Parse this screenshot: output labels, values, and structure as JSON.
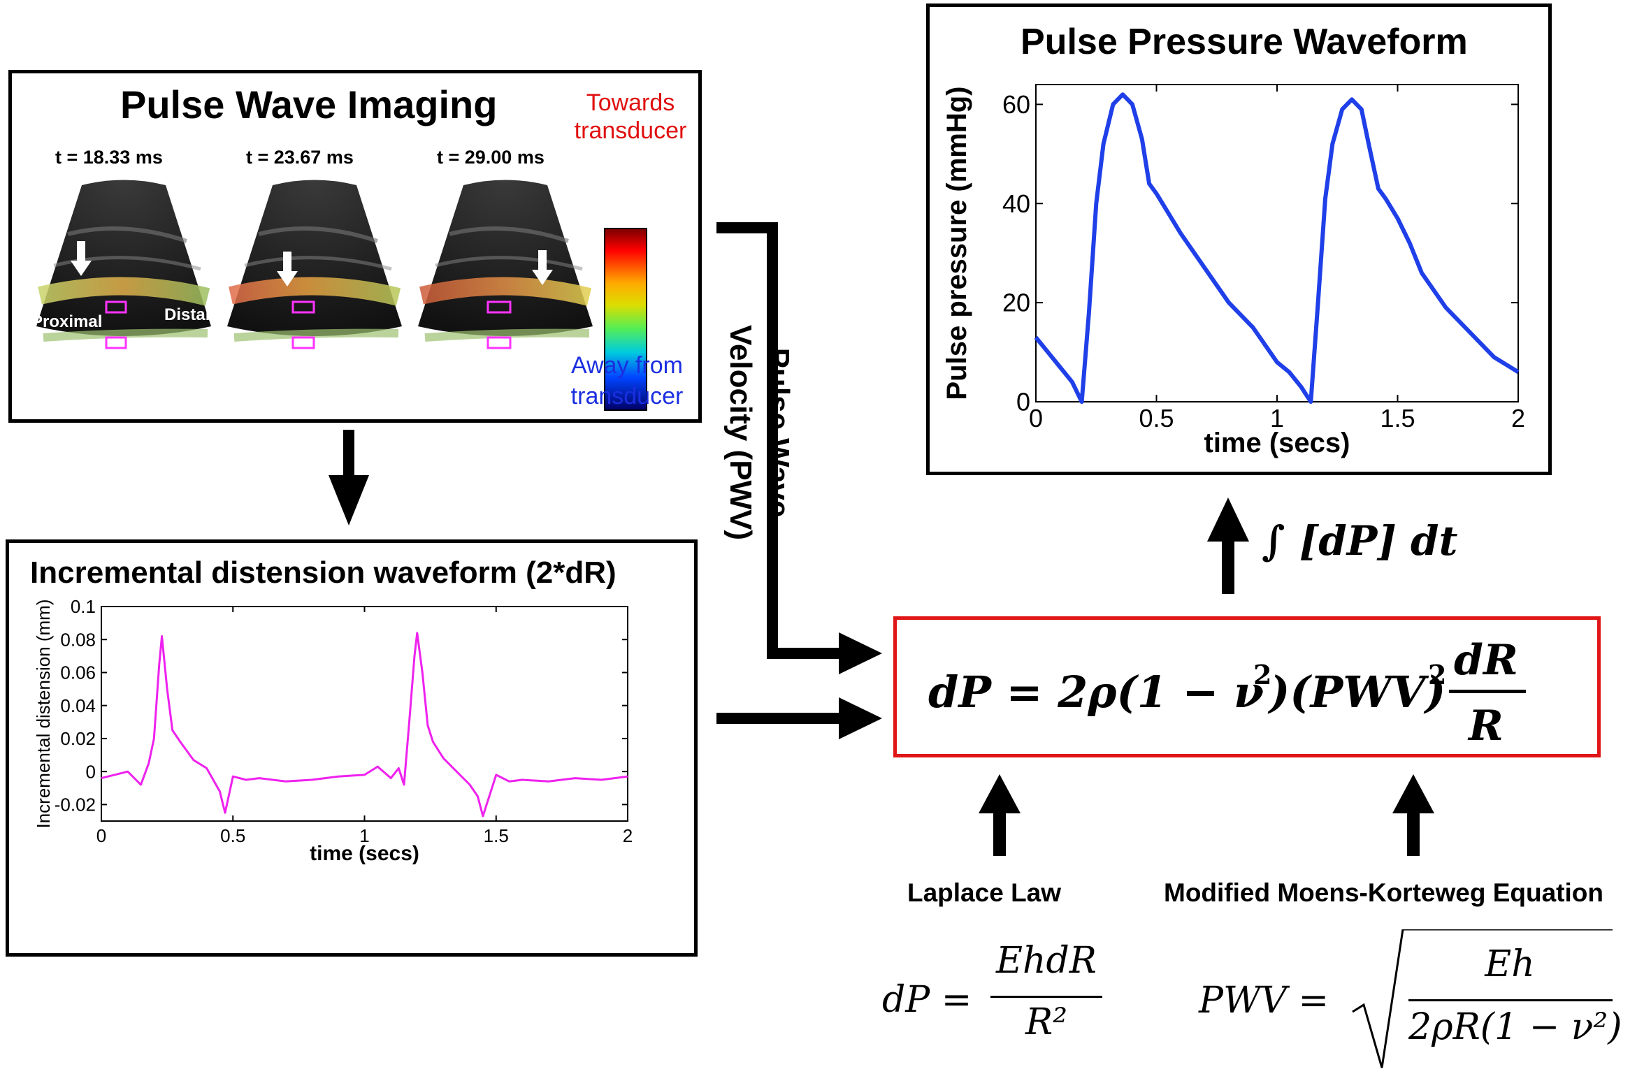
{
  "pwi": {
    "title": "Pulse Wave Imaging",
    "frames": [
      {
        "time_label": "t = 18.33 ms"
      },
      {
        "time_label": "t = 23.67 ms"
      },
      {
        "time_label": "t = 29.00 ms"
      }
    ],
    "proximal_label": "Proximal",
    "distal_label": "Distal",
    "colorbar_top_line1": "Towards",
    "colorbar_top_line2": "transducer",
    "colorbar_bottom_line1": "Away from",
    "colorbar_bottom_line2": "transducer",
    "colors": {
      "towards": "#e01010",
      "away": "#1a2ee0"
    }
  },
  "pwv_label_line1": "Pulse Wave",
  "pwv_label_line2": "Velocity (PWV)",
  "distension": {
    "title": "Incremental distension waveform (2*dR)",
    "ylabel": "Incremental distension (mm)",
    "xlabel": "time (secs)",
    "ytick_labels": [
      "0.1",
      "0.08",
      "0.06",
      "0.04",
      "0.02",
      "0",
      "-0.02"
    ],
    "xtick_labels": [
      "0",
      "0.5",
      "1",
      "1.5",
      "2"
    ],
    "color": "#ee22ee"
  },
  "pressure": {
    "title": "Pulse Pressure Waveform",
    "ylabel": "Pulse pressure (mmHg)",
    "xlabel": "time (secs)",
    "ytick_labels": [
      "60",
      "40",
      "20",
      "0"
    ],
    "xtick_labels": [
      "0",
      "0.5",
      "1",
      "1.5",
      "2"
    ],
    "color": "#1f3fe8"
  },
  "integral_label": "∫ [dP] dt",
  "main_equation": {
    "border_color": "#e01515"
  },
  "laplace": {
    "label": "Laplace Law",
    "lhs": "dP =",
    "numerator": "EhdR",
    "denominator": "R²"
  },
  "moens": {
    "label": "Modified Moens-Korteweg Equation",
    "lhs": "PWV =",
    "numerator": "Eh",
    "denominator": "2ρR(1 − ν²)"
  },
  "chart_data": [
    {
      "type": "line",
      "title": "Incremental distension waveform (2*dR)",
      "xlabel": "time (secs)",
      "ylabel": "Incremental distension (mm)",
      "xlim": [
        0,
        2
      ],
      "ylim": [
        -0.03,
        0.1
      ],
      "series": [
        {
          "x": [
            0,
            0.05,
            0.1,
            0.15,
            0.18,
            0.2,
            0.22,
            0.23,
            0.25,
            0.27,
            0.3,
            0.35,
            0.4,
            0.45,
            0.47,
            0.5,
            0.55,
            0.6,
            0.7,
            0.8,
            0.9,
            1.0,
            1.05,
            1.1,
            1.13,
            1.15,
            1.17,
            1.19,
            1.2,
            1.22,
            1.24,
            1.26,
            1.3,
            1.35,
            1.4,
            1.43,
            1.45,
            1.5,
            1.55,
            1.6,
            1.7,
            1.8,
            1.9,
            2.0
          ],
          "y": [
            -0.004,
            -0.002,
            0.0,
            -0.008,
            0.005,
            0.02,
            0.065,
            0.082,
            0.05,
            0.025,
            0.018,
            0.007,
            0.002,
            -0.012,
            -0.025,
            -0.003,
            -0.005,
            -0.004,
            -0.006,
            -0.005,
            -0.003,
            -0.002,
            0.003,
            -0.004,
            0.002,
            -0.008,
            0.03,
            0.07,
            0.084,
            0.06,
            0.028,
            0.018,
            0.008,
            0.0,
            -0.008,
            -0.015,
            -0.027,
            -0.002,
            -0.006,
            -0.005,
            -0.006,
            -0.004,
            -0.005,
            -0.003
          ]
        }
      ]
    },
    {
      "type": "line",
      "title": "Pulse Pressure Waveform",
      "xlabel": "time (secs)",
      "ylabel": "Pulse pressure (mmHg)",
      "xlim": [
        0,
        2
      ],
      "ylim": [
        0,
        64
      ],
      "series": [
        {
          "x": [
            0,
            0.05,
            0.1,
            0.15,
            0.19,
            0.22,
            0.25,
            0.28,
            0.32,
            0.36,
            0.4,
            0.44,
            0.47,
            0.5,
            0.55,
            0.6,
            0.7,
            0.8,
            0.9,
            1.0,
            1.05,
            1.1,
            1.14,
            1.17,
            1.2,
            1.23,
            1.27,
            1.31,
            1.35,
            1.38,
            1.42,
            1.45,
            1.5,
            1.55,
            1.6,
            1.7,
            1.8,
            1.9,
            2.0
          ],
          "y": [
            13,
            10,
            7,
            4,
            0,
            18,
            40,
            52,
            60,
            62,
            60,
            53,
            44,
            42,
            38,
            34,
            27,
            20,
            15,
            8,
            6,
            3,
            0,
            20,
            41,
            52,
            59,
            61,
            59,
            52,
            43,
            41,
            37,
            32,
            26,
            19,
            14,
            9,
            6
          ]
        }
      ]
    }
  ]
}
